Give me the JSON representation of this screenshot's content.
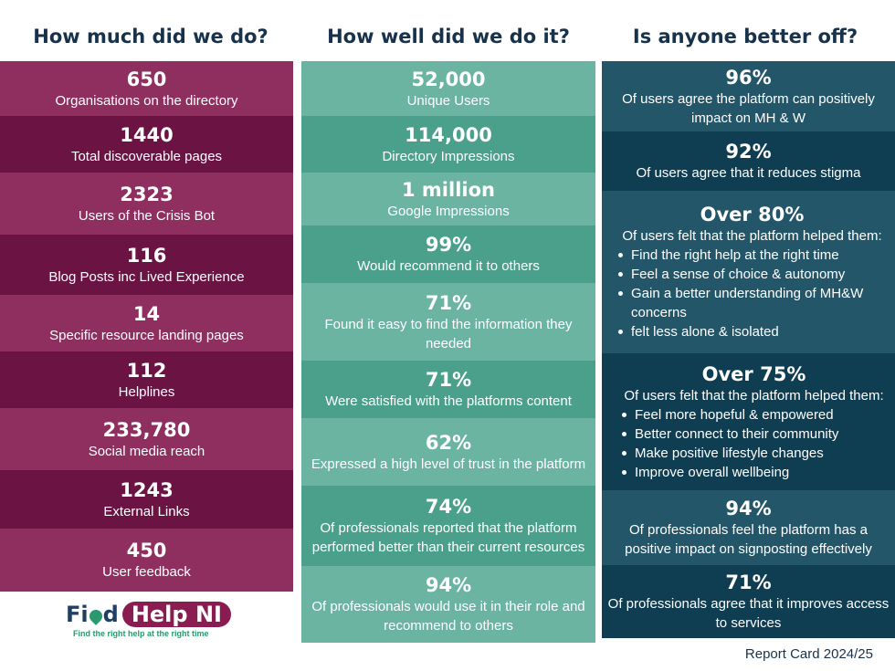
{
  "headers": {
    "col1": "How much did we do?",
    "col2": "How well did we do it?",
    "col3": "Is anyone better off?"
  },
  "col1": [
    {
      "num": "650",
      "desc": "Organisations on the directory"
    },
    {
      "num": "1440",
      "desc": "Total discoverable pages"
    },
    {
      "num": "2323",
      "desc": "Users of the Crisis Bot"
    },
    {
      "num": "116",
      "desc": "Blog Posts inc Lived Experience"
    },
    {
      "num": "14",
      "desc": "Specific resource landing pages"
    },
    {
      "num": "112",
      "desc": "Helplines"
    },
    {
      "num": "233,780",
      "desc": "Social media reach"
    },
    {
      "num": "1243",
      "desc": "External Links"
    },
    {
      "num": "450",
      "desc": "User feedback"
    }
  ],
  "col2": [
    {
      "num": "52,000",
      "desc": "Unique Users"
    },
    {
      "num": "114,000",
      "desc": "Directory Impressions"
    },
    {
      "num": "1 million",
      "desc": "Google Impressions"
    },
    {
      "num": "99%",
      "desc": "Would recommend it to others"
    },
    {
      "num": "71%",
      "desc": "Found it easy to find the information they needed"
    },
    {
      "num": "71%",
      "desc": "Were satisfied with the platforms content"
    },
    {
      "num": "62%",
      "desc": "Expressed a high level of trust in the platform"
    },
    {
      "num": "74%",
      "desc": "Of professionals reported that the platform performed better than their current resources"
    },
    {
      "num": "94%",
      "desc": "Of professionals would use it in their role and recommend to others"
    }
  ],
  "col3": [
    {
      "num": "96%",
      "desc": "Of users agree the platform can positively impact on MH & W"
    },
    {
      "num": "92%",
      "desc": "Of users agree that it reduces stigma"
    },
    {
      "num": "Over 80%",
      "desc": "Of users felt that the platform helped them:",
      "bullets": [
        "Find the right help at the right time",
        "Feel a sense of choice & autonomy",
        "Gain a better understanding of MH&W concerns",
        "felt less alone & isolated"
      ]
    },
    {
      "num": "Over 75%",
      "desc": "Of users felt that the platform helped them:",
      "bullets": [
        "Feel more hopeful & empowered",
        "Better connect to their community",
        "Make positive lifestyle changes",
        "Improve overall wellbeing"
      ]
    },
    {
      "num": "94%",
      "desc": "Of professionals feel the platform has a positive impact on signposting effectively"
    },
    {
      "num": "71%",
      "desc": "Of professionals agree that it improves access to services"
    }
  ],
  "logo": {
    "part1": "Fi",
    "part2": "d",
    "help": "Help NI",
    "tagline": "Find the right help at the right time"
  },
  "footer": "Report Card 2024/25",
  "colors": {
    "plum_light": "#8f2f5f",
    "plum_dark": "#6b1343",
    "teal_light": "#6ab4a1",
    "teal_dark": "#4aa08a",
    "navy_light": "#24566a",
    "navy_dark": "#0f3e52",
    "heading": "#17324a"
  }
}
